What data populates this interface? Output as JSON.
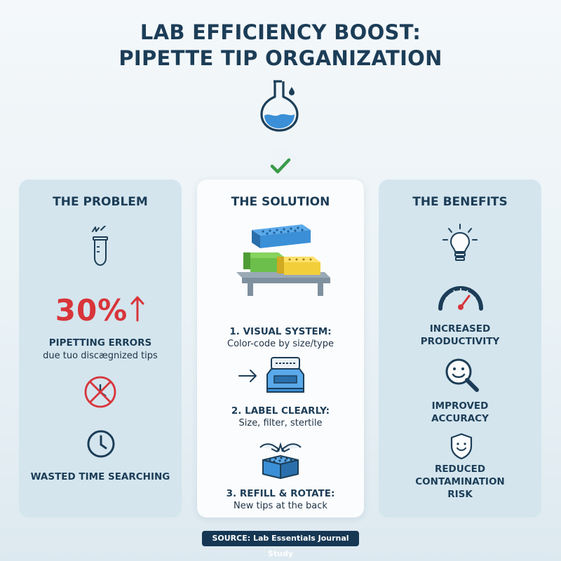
{
  "title": {
    "line1": "LAB EFFICIENCY BOOST:",
    "line2": "PIPETTE TIP ORGANIZATION"
  },
  "icons": {
    "flask": "flask-icon",
    "check": "checkmark-icon",
    "tube": "tube-icon",
    "no_entry": "prohibited-icon",
    "clock": "clock-icon",
    "tip_racks": "tip-racks-icon",
    "label_printer": "label-printer-icon",
    "hands_rack": "hands-rack-icon",
    "lightbulb": "lightbulb-icon",
    "gauge": "gauge-icon",
    "magnifier": "smiley-magnifier-icon",
    "shield": "shield-icon"
  },
  "colors": {
    "accent_red": "#d8353a",
    "check_green": "#3a9a4a",
    "navy": "#1c3d57",
    "rack_blue": "#3b8fd6",
    "rack_green": "#6cbf4a",
    "rack_yellow": "#f2cf3a"
  },
  "problem": {
    "heading": "THE PROBLEM",
    "stat": "30%",
    "stat_label": "PIPETTING ERRORS",
    "stat_sub": "due tuo discægnized tips",
    "time_label": "WASTED TIME SEARCHING"
  },
  "solution": {
    "heading": "THE SOLUTION",
    "steps": [
      {
        "title": "1. VISUAL SYSTEM:",
        "desc": "Color-code by size/type"
      },
      {
        "title": "2. LABEL CLEARLY:",
        "desc": "Size, filter, stertile"
      },
      {
        "title": "3. REFILL & ROTATE:",
        "desc": "New tips at the back"
      }
    ]
  },
  "benefits": {
    "heading": "THE BENEFITS",
    "items": [
      {
        "line1": "INCREASED",
        "line2": "PRODUCTIVITY"
      },
      {
        "line1": "IMPROVED",
        "line2": "ACCURACY"
      },
      {
        "line1": "REDUCED",
        "line2": "CONTAMINATION",
        "line3": "RISK"
      }
    ]
  },
  "source": "SOURCE: Lab Essentials Journal Study"
}
